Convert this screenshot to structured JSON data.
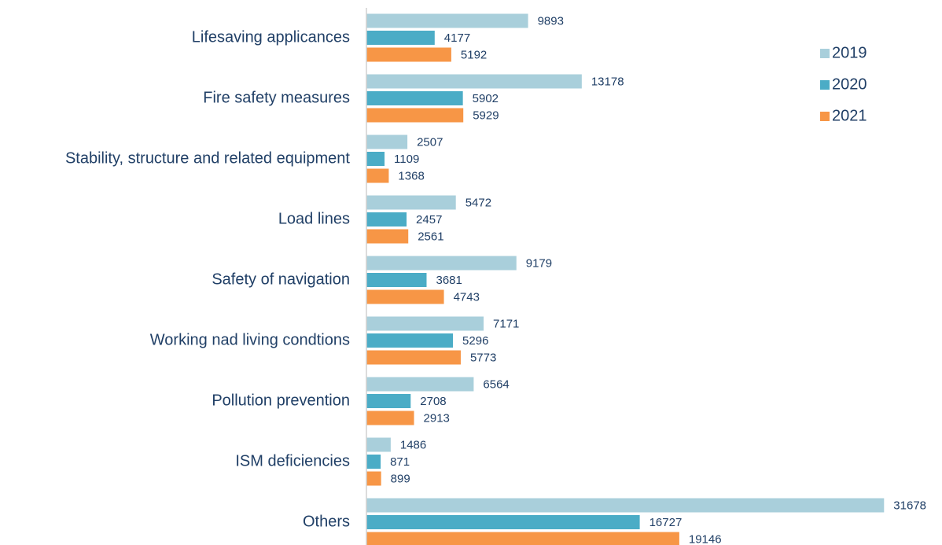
{
  "chart_data": {
    "type": "barh",
    "categories": [
      "Lifesaving applicances",
      "Fire safety measures",
      "Stability, structure and related equipment",
      "Load lines",
      "Safety of navigation",
      "Working nad living condtions",
      "Pollution prevention",
      "ISM deficiencies",
      "Others"
    ],
    "series": [
      {
        "name": "2019",
        "color": "#a9cfdb",
        "values": [
          9893,
          13178,
          2507,
          5472,
          9179,
          7171,
          6564,
          1486,
          31678
        ]
      },
      {
        "name": "2020",
        "color": "#4bacc6",
        "values": [
          4177,
          5902,
          1109,
          2457,
          3681,
          5296,
          2708,
          871,
          16727
        ]
      },
      {
        "name": "2021",
        "color": "#f79646",
        "values": [
          5192,
          5929,
          1368,
          2561,
          4743,
          5773,
          2913,
          899,
          19146
        ]
      }
    ],
    "xlim": [
      0,
      32000
    ],
    "legend": "right"
  }
}
